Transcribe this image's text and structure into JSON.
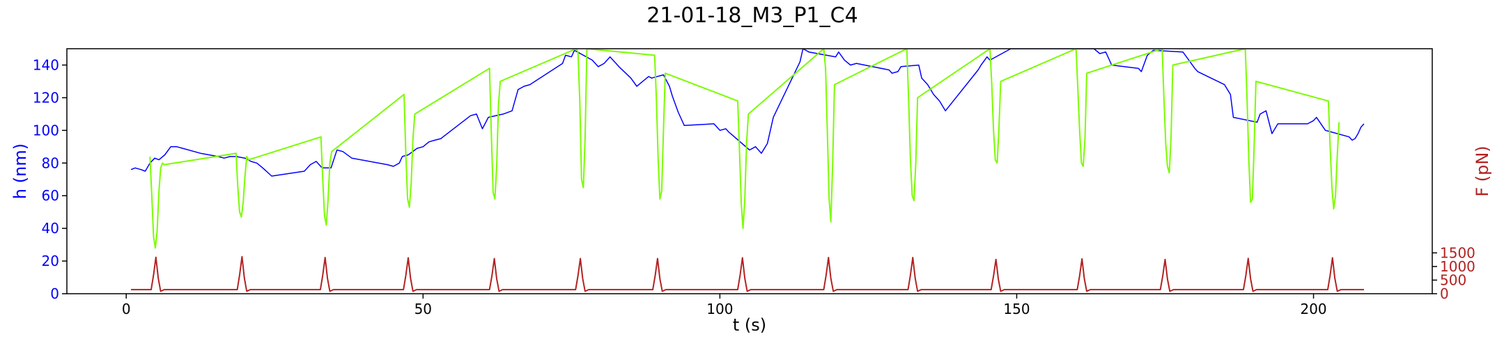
{
  "chart_data": {
    "type": "line",
    "title": "21-01-18_M3_P1_C4",
    "xlabel": "t (s)",
    "ylabel_left": "h (nm)",
    "ylabel_right": "F (pN)",
    "xlim": [
      -10,
      220
    ],
    "ylim_left": [
      0,
      150
    ],
    "ylim_right": [
      0,
      9000
    ],
    "x_ticks": [
      0,
      50,
      100,
      150,
      200
    ],
    "y_ticks_left": [
      0,
      20,
      40,
      60,
      80,
      100,
      120,
      140
    ],
    "y_ticks_right": [
      0,
      500,
      1000,
      1500
    ],
    "grid": false,
    "colors": {
      "h_series": "#0000ff",
      "h_contact": "#7cfc00",
      "force": "#b22222",
      "left_axis": "#0000ff",
      "right_axis": "#b22222"
    },
    "series": [
      {
        "axis": "left",
        "color": "#0000ff",
        "x": [
          0.8,
          1.5,
          2.5,
          3.2,
          4.0,
          4.8,
          5.5,
          6.5,
          7.5,
          8.5,
          9.5,
          12.5,
          15.5,
          16.5,
          17.5,
          18.5,
          20.0,
          21.0,
          22.0,
          23.0,
          24.5,
          30.0,
          31.0,
          32.0,
          33.0,
          34.5,
          35.5,
          36.5,
          38.0,
          44.0,
          45.0,
          46.0,
          46.5,
          47.5,
          49.0,
          50.0,
          51.0,
          52.0,
          53.0,
          58.0,
          59.0,
          60.0,
          61.0,
          63.5,
          65.0,
          66.0,
          67.0,
          68.0,
          73.5,
          74.0,
          75.0,
          75.5,
          78.5,
          79.5,
          80.5,
          81.5,
          82.5,
          83.0,
          85.0,
          86.0,
          87.0,
          88.0,
          88.5,
          90.5,
          91.5,
          92.0,
          93.0,
          94.0,
          99.0,
          100.0,
          101.0,
          101.5,
          105.0,
          106.0,
          107.0,
          108.0,
          109.0,
          113.5,
          114.0,
          115.0,
          119.5,
          120.0,
          121.0,
          122.0,
          123.0,
          128.5,
          129.0,
          130.0,
          130.5,
          133.5,
          134.0,
          135.0,
          136.0,
          137.0,
          138.0,
          143.5,
          144.0,
          145.0,
          145.5,
          149.0,
          149.5,
          163.0,
          164.0,
          165.0,
          166.0,
          170.5,
          171.0,
          172.0,
          173.0,
          178.0,
          179.0,
          180.0,
          180.5,
          185.0,
          186.0,
          186.5,
          190.5,
          191.0,
          192.0,
          193.0,
          194.0,
          199.0,
          200.0,
          200.5,
          202.0,
          206.0,
          206.5,
          207.0,
          207.5,
          208.0,
          208.5
        ],
        "y": [
          76,
          77,
          76,
          75,
          80,
          83,
          82,
          85,
          90,
          90,
          89,
          86,
          84,
          83,
          84,
          84,
          83,
          81,
          80,
          77,
          72,
          75,
          79,
          81,
          77,
          77,
          88,
          87,
          83,
          79,
          78,
          80,
          84,
          85,
          89,
          90,
          93,
          94,
          95,
          109,
          110,
          101,
          108,
          110,
          112,
          125,
          127,
          128,
          141,
          146,
          145,
          149,
          143,
          139,
          141,
          145,
          141,
          139,
          132,
          127,
          130,
          133,
          132,
          134,
          127,
          121,
          111,
          103,
          104,
          100,
          101,
          99,
          88,
          90,
          86,
          92,
          108,
          142,
          150,
          148,
          145,
          148,
          143,
          140,
          141,
          137,
          135,
          136,
          139,
          140,
          132,
          128,
          122,
          118,
          112,
          137,
          140,
          145,
          143,
          150,
          150,
          150,
          147,
          148,
          140,
          138,
          136,
          146,
          149,
          148,
          143,
          138,
          136,
          128,
          122,
          108,
          105,
          110,
          112,
          98,
          104,
          104,
          106,
          108,
          100,
          96,
          94,
          95,
          98,
          102,
          104
        ]
      },
      {
        "axis": "left",
        "color": "#7cfc00",
        "x": [
          4.0,
          4.3,
          4.6,
          4.9,
          5.2,
          5.5,
          5.8,
          6.1,
          6.4,
          18.5,
          18.8,
          19.1,
          19.4,
          19.7,
          20.0,
          20.3,
          20.6,
          32.8,
          33.1,
          33.4,
          33.7,
          34.0,
          34.3,
          34.6,
          46.8,
          47.1,
          47.4,
          47.7,
          48.0,
          48.3,
          48.6,
          61.2,
          61.5,
          61.8,
          62.1,
          62.4,
          62.7,
          63.0,
          75.8,
          76.1,
          76.4,
          76.7,
          77.0,
          77.3,
          77.6,
          89.0,
          89.3,
          89.6,
          89.9,
          90.2,
          90.5,
          90.8,
          103.0,
          103.3,
          103.6,
          103.9,
          104.2,
          104.5,
          104.8,
          117.5,
          117.8,
          118.1,
          118.4,
          118.7,
          119.0,
          119.3,
          131.5,
          131.8,
          132.1,
          132.4,
          132.7,
          133.0,
          133.3,
          145.5,
          145.8,
          146.1,
          146.4,
          146.7,
          147.0,
          147.3,
          160.0,
          160.3,
          160.6,
          160.9,
          161.2,
          161.5,
          161.8,
          174.5,
          174.8,
          175.1,
          175.4,
          175.7,
          176.0,
          176.3,
          188.5,
          188.8,
          189.1,
          189.4,
          189.7,
          190.0,
          190.3,
          202.5,
          202.8,
          203.1,
          203.4,
          203.7,
          204.0,
          204.3
        ],
        "y": [
          84,
          60,
          35,
          28,
          38,
          62,
          77,
          80,
          79,
          86,
          65,
          50,
          47,
          56,
          72,
          84,
          82,
          96,
          70,
          48,
          42,
          58,
          80,
          87,
          122,
          85,
          58,
          53,
          68,
          95,
          110,
          138,
          98,
          62,
          58,
          78,
          115,
          130,
          150,
          148,
          118,
          70,
          65,
          95,
          150,
          146,
          120,
          82,
          58,
          63,
          100,
          135,
          118,
          88,
          55,
          40,
          58,
          92,
          110,
          150,
          138,
          100,
          58,
          44,
          80,
          128,
          150,
          118,
          82,
          60,
          57,
          80,
          120,
          150,
          128,
          100,
          82,
          80,
          100,
          130,
          150,
          125,
          100,
          80,
          78,
          95,
          135,
          150,
          120,
          92,
          78,
          74,
          95,
          140,
          150,
          120,
          82,
          56,
          58,
          90,
          130,
          118,
          90,
          65,
          52,
          60,
          85,
          105
        ]
      },
      {
        "axis": "right",
        "color": "#b22222",
        "baseline": 150,
        "peak_x": [
          5.0,
          19.5,
          33.5,
          47.5,
          62.0,
          76.5,
          89.5,
          103.8,
          118.3,
          132.5,
          146.5,
          161.0,
          175.0,
          189.0,
          203.2
        ],
        "peak_y": [
          1340,
          1360,
          1330,
          1320,
          1290,
          1290,
          1290,
          1320,
          1330,
          1330,
          1260,
          1280,
          1260,
          1300,
          1320
        ],
        "x_range": [
          0.8,
          208.5
        ]
      }
    ]
  }
}
